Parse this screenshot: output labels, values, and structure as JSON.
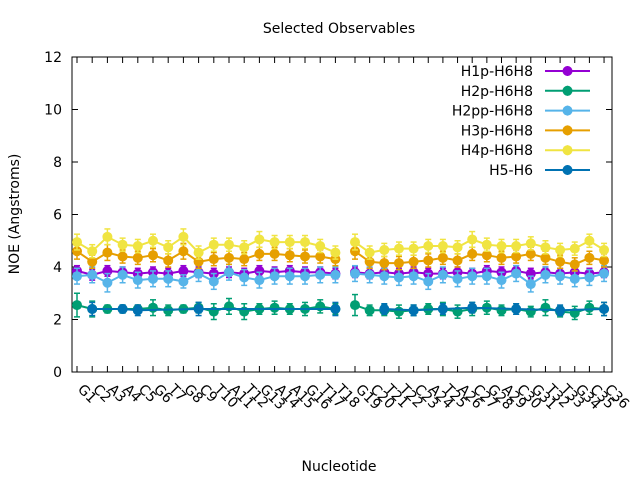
{
  "chart_data": {
    "type": "line",
    "title": "Selected Observables",
    "xlabel": "Nucleotide",
    "ylabel": "NOE (Angstroms)",
    "ylim": [
      0,
      12
    ],
    "yticks": [
      0,
      2,
      4,
      6,
      8,
      10,
      12
    ],
    "grid": false,
    "legend_position": "top-right",
    "categories": [
      "G1",
      "C2",
      "A3",
      "A4",
      "C5",
      "G6",
      "T7",
      "G8",
      "C9",
      "T10",
      "A11",
      "T12",
      "G13",
      "A14",
      "A15",
      "G16",
      "T17",
      "T18",
      "G19",
      "C20",
      "T21",
      "T22",
      "C23",
      "A24",
      "T25",
      "A26",
      "C27",
      "G28",
      "A29",
      "C30",
      "G31",
      "T32",
      "T33",
      "G34",
      "C35",
      "C36"
    ],
    "series": [
      {
        "name": "H1p-H6H8",
        "color": "#9400d3",
        "values": [
          3.85,
          3.7,
          3.85,
          3.8,
          3.75,
          3.8,
          3.75,
          3.85,
          3.8,
          3.75,
          3.8,
          3.75,
          3.85,
          3.8,
          3.85,
          3.8,
          3.8,
          3.75,
          3.8,
          3.75,
          3.8,
          3.75,
          3.8,
          3.75,
          3.75,
          3.8,
          3.75,
          3.85,
          3.8,
          3.85,
          3.75,
          3.8,
          3.75,
          3.8,
          3.75,
          3.8
        ],
        "errors": [
          0.2,
          0.2,
          0.2,
          0.2,
          0.2,
          0.2,
          0.2,
          0.2,
          0.2,
          0.2,
          0.2,
          0.2,
          0.2,
          0.2,
          0.2,
          0.2,
          0.2,
          0.2,
          0.2,
          0.2,
          0.2,
          0.2,
          0.2,
          0.2,
          0.2,
          0.2,
          0.2,
          0.2,
          0.2,
          0.2,
          0.2,
          0.2,
          0.2,
          0.2,
          0.2,
          0.2
        ]
      },
      {
        "name": "H2p-H6H8",
        "color": "#009e73",
        "values": [
          2.55,
          2.4,
          2.4,
          2.4,
          2.4,
          2.45,
          2.35,
          2.4,
          2.45,
          2.3,
          2.5,
          2.3,
          2.4,
          2.45,
          2.4,
          2.4,
          2.5,
          2.4,
          2.55,
          2.35,
          2.35,
          2.3,
          2.35,
          2.4,
          2.4,
          2.3,
          2.4,
          2.45,
          2.35,
          2.4,
          2.3,
          2.45,
          2.3,
          2.25,
          2.45,
          2.4
        ],
        "errors": [
          0.45,
          0.3,
          0.15,
          0.15,
          0.15,
          0.3,
          0.2,
          0.15,
          0.2,
          0.3,
          0.3,
          0.3,
          0.2,
          0.25,
          0.2,
          0.25,
          0.25,
          0.2,
          0.4,
          0.2,
          0.2,
          0.25,
          0.2,
          0.2,
          0.25,
          0.25,
          0.25,
          0.25,
          0.2,
          0.2,
          0.2,
          0.3,
          0.2,
          0.25,
          0.25,
          0.25
        ]
      },
      {
        "name": "H2pp-H6H8",
        "color": "#56b4e9",
        "values": [
          3.65,
          3.7,
          3.4,
          3.7,
          3.5,
          3.55,
          3.55,
          3.45,
          3.75,
          3.45,
          3.8,
          3.6,
          3.5,
          3.65,
          3.65,
          3.65,
          3.7,
          3.7,
          3.75,
          3.7,
          3.65,
          3.6,
          3.65,
          3.45,
          3.7,
          3.55,
          3.65,
          3.65,
          3.5,
          3.75,
          3.35,
          3.7,
          3.65,
          3.55,
          3.6,
          3.75
        ],
        "errors": [
          0.3,
          0.3,
          0.35,
          0.3,
          0.3,
          0.3,
          0.3,
          0.25,
          0.3,
          0.3,
          0.3,
          0.3,
          0.3,
          0.3,
          0.3,
          0.3,
          0.3,
          0.3,
          0.3,
          0.3,
          0.3,
          0.3,
          0.3,
          0.3,
          0.3,
          0.3,
          0.3,
          0.3,
          0.3,
          0.3,
          0.3,
          0.3,
          0.3,
          0.3,
          0.3,
          0.3
        ]
      },
      {
        "name": "H3p-H6H8",
        "color": "#e69f00",
        "values": [
          4.6,
          4.2,
          4.55,
          4.4,
          4.35,
          4.45,
          4.25,
          4.6,
          4.2,
          4.3,
          4.35,
          4.3,
          4.5,
          4.5,
          4.45,
          4.4,
          4.4,
          4.3,
          4.6,
          4.2,
          4.15,
          4.15,
          4.2,
          4.25,
          4.35,
          4.25,
          4.5,
          4.45,
          4.35,
          4.4,
          4.5,
          4.35,
          4.2,
          4.1,
          4.35,
          4.25
        ],
        "errors": [
          0.3,
          0.25,
          0.3,
          0.25,
          0.25,
          0.25,
          0.25,
          0.3,
          0.25,
          0.25,
          0.25,
          0.25,
          0.25,
          0.25,
          0.25,
          0.25,
          0.25,
          0.25,
          0.3,
          0.25,
          0.25,
          0.25,
          0.25,
          0.25,
          0.25,
          0.25,
          0.25,
          0.25,
          0.25,
          0.25,
          0.25,
          0.25,
          0.25,
          0.25,
          0.25,
          0.25
        ]
      },
      {
        "name": "H4p-H6H8",
        "color": "#f0e442",
        "values": [
          4.95,
          4.6,
          5.15,
          4.85,
          4.8,
          5.0,
          4.75,
          5.15,
          4.55,
          4.85,
          4.85,
          4.75,
          5.05,
          4.95,
          4.95,
          4.95,
          4.8,
          4.55,
          4.95,
          4.55,
          4.65,
          4.7,
          4.7,
          4.8,
          4.8,
          4.75,
          5.05,
          4.85,
          4.8,
          4.8,
          4.9,
          4.75,
          4.65,
          4.7,
          5.0,
          4.65
        ],
        "errors": [
          0.3,
          0.25,
          0.3,
          0.25,
          0.25,
          0.25,
          0.25,
          0.3,
          0.25,
          0.25,
          0.25,
          0.25,
          0.3,
          0.25,
          0.25,
          0.25,
          0.25,
          0.25,
          0.3,
          0.25,
          0.25,
          0.25,
          0.25,
          0.25,
          0.25,
          0.25,
          0.3,
          0.25,
          0.25,
          0.25,
          0.25,
          0.25,
          0.25,
          0.25,
          0.25,
          0.25
        ]
      },
      {
        "name": "H5-H6",
        "color": "#0072b2",
        "points": [
          {
            "category": "C2",
            "value": 2.4,
            "error": 0.25
          },
          {
            "category": "A4",
            "value": 2.4,
            "error": 0.15
          },
          {
            "category": "C5",
            "value": 2.35,
            "error": 0.2
          },
          {
            "category": "C9",
            "value": 2.4,
            "error": 0.25
          },
          {
            "category": "T18",
            "value": 2.4,
            "error": 0.25
          },
          {
            "category": "T21",
            "value": 2.4,
            "error": 0.2
          },
          {
            "category": "C23",
            "value": 2.35,
            "error": 0.2
          },
          {
            "category": "T25",
            "value": 2.4,
            "error": 0.2
          },
          {
            "category": "T26",
            "value": 2.4,
            "error": 0.2
          },
          {
            "category": "C27",
            "value": 2.45,
            "error": 0.2
          },
          {
            "category": "C30",
            "value": 2.4,
            "error": 0.2
          },
          {
            "category": "T33",
            "value": 2.35,
            "error": 0.2
          },
          {
            "category": "C36",
            "value": 2.4,
            "error": 0.25
          }
        ]
      }
    ]
  }
}
